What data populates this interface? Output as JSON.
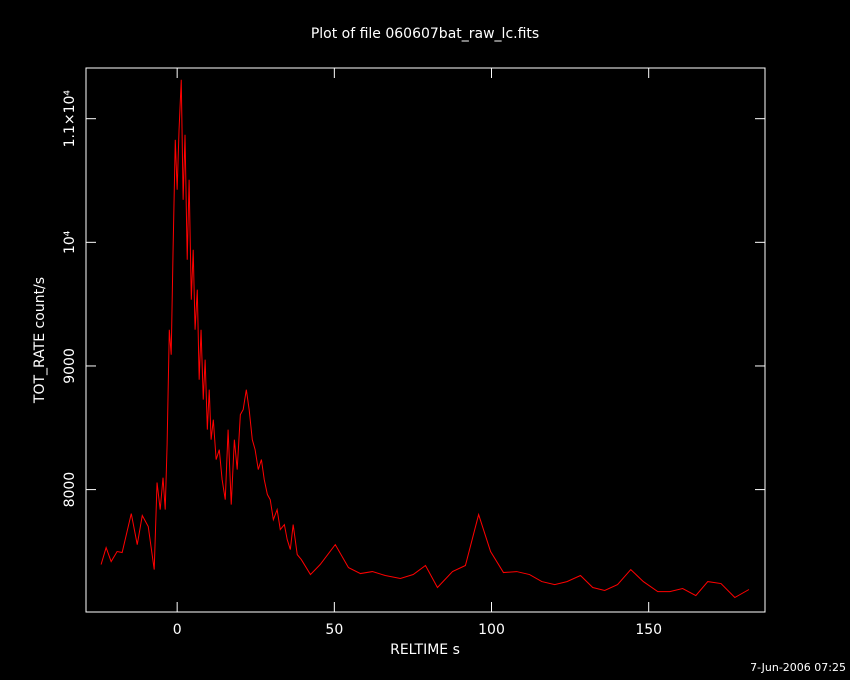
{
  "chart_data": {
    "type": "line",
    "title": "Plot of file 060607bat_raw_lc.fits",
    "xlabel": "RELTIME  s",
    "ylabel": "TOT_RATE  count/s",
    "footer": "7-Jun-2006 07:25",
    "xlim": [
      -29,
      187
    ],
    "ylim": [
      7010,
      11410
    ],
    "xticks": [
      0,
      50,
      100,
      150
    ],
    "yticks": [
      8000,
      9000,
      {
        "value": 10000,
        "label": "10⁴"
      },
      {
        "value": 11000,
        "label": "1.1×10⁴"
      }
    ],
    "background": "#000000",
    "axis_color": "#ffffff",
    "series": [
      {
        "color": "#ff0000",
        "x": [
          -24.2,
          -22.6,
          -21,
          -19.1,
          -17.5,
          -14.6,
          -12.7,
          -11.1,
          -9.2,
          -7.3,
          -6.4,
          -5.4,
          -4.5,
          -3.8,
          -3.2,
          -2.5,
          -1.9,
          -1.3,
          -0.6,
          0,
          0.6,
          1.3,
          1.9,
          2.5,
          3.2,
          3.8,
          4.5,
          5.1,
          5.7,
          6.4,
          7.0,
          7.6,
          8.3,
          8.9,
          9.6,
          10.2,
          10.8,
          11.5,
          12.4,
          13.4,
          14.3,
          15.3,
          16.2,
          17.2,
          18.2,
          19.1,
          20.1,
          21.0,
          22.0,
          22.9,
          23.9,
          24.8,
          25.8,
          26.8,
          27.7,
          28.7,
          29.6,
          30.6,
          31.8,
          32.8,
          34.1,
          35.0,
          36.0,
          36.9,
          38.2,
          39.5,
          42.4,
          45.5,
          50.3,
          54.5,
          58.3,
          62.1,
          66.2,
          71.0,
          75.1,
          79.0,
          82.8,
          87.6,
          91.7,
          95.9,
          99.7,
          103.8,
          108.0,
          112.1,
          116.0,
          120.1,
          124.0,
          128.3,
          132.2,
          136.0,
          140.1,
          144.3,
          148.3,
          152.9,
          156.7,
          160.8,
          165.0,
          168.8,
          173.0,
          177.4,
          181.9
        ],
        "values": [
          7394,
          7531,
          7418,
          7499,
          7491,
          7806,
          7555,
          7790,
          7701,
          7353,
          8057,
          7838,
          8097,
          7838,
          8364,
          9293,
          9091,
          9940,
          10829,
          10425,
          10911,
          11315,
          10344,
          10870,
          9859,
          10506,
          9536,
          9940,
          9293,
          9617,
          8889,
          9293,
          8728,
          9051,
          8485,
          8808,
          8404,
          8566,
          8243,
          8323,
          8081,
          7919,
          8485,
          7879,
          8404,
          8162,
          8606,
          8647,
          8808,
          8647,
          8404,
          8323,
          8162,
          8243,
          8081,
          7960,
          7919,
          7757,
          7838,
          7677,
          7717,
          7596,
          7515,
          7717,
          7474,
          7434,
          7313,
          7394,
          7555,
          7369,
          7321,
          7337,
          7305,
          7281,
          7313,
          7386,
          7208,
          7337,
          7386,
          7798,
          7499,
          7329,
          7337,
          7313,
          7256,
          7232,
          7256,
          7305,
          7208,
          7184,
          7232,
          7353,
          7256,
          7175,
          7175,
          7200,
          7143,
          7256,
          7240,
          7127,
          7192
        ]
      }
    ]
  }
}
